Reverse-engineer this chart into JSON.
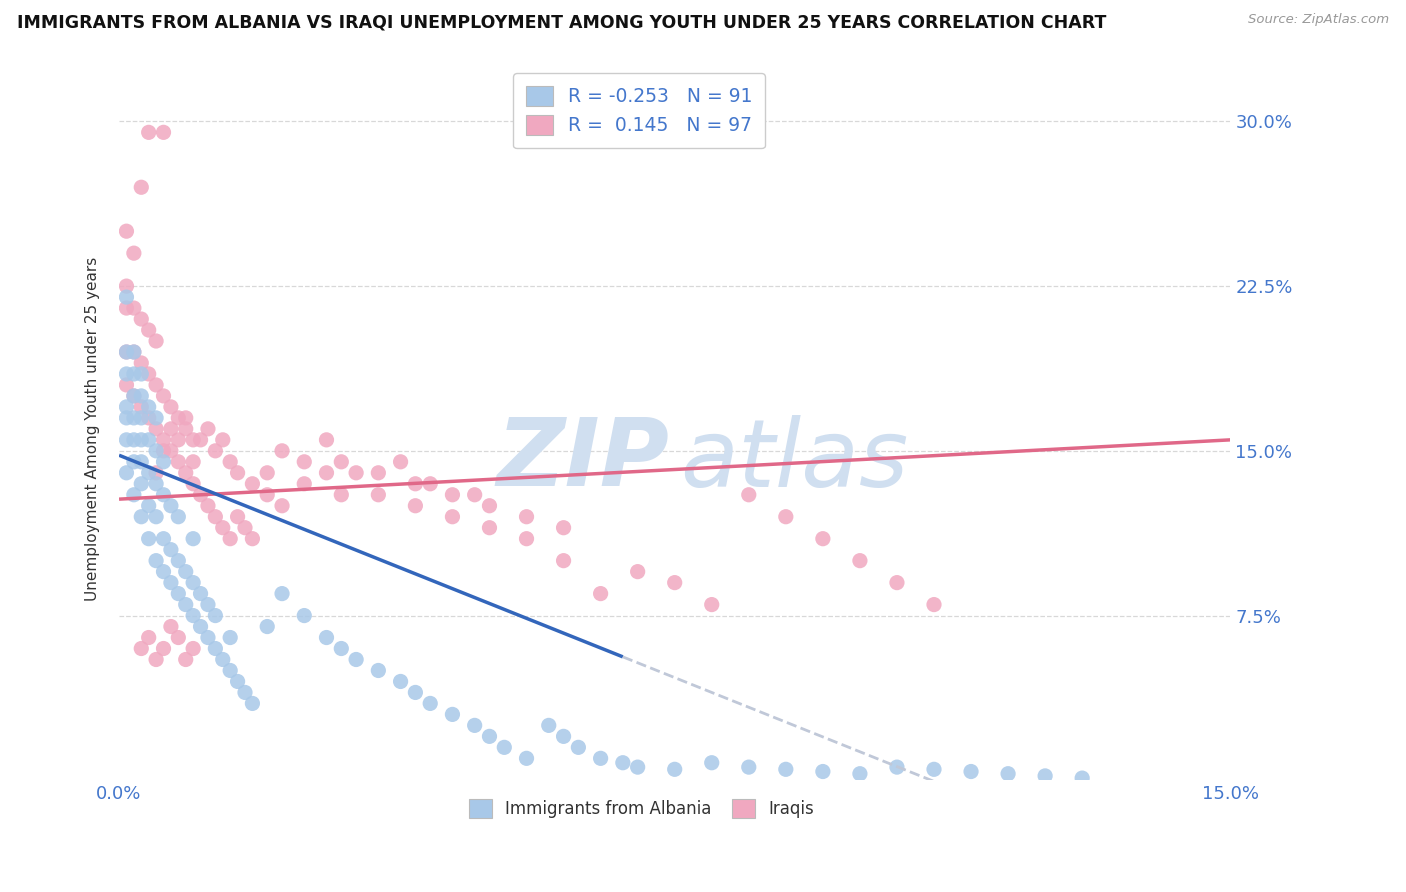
{
  "title": "IMMIGRANTS FROM ALBANIA VS IRAQI UNEMPLOYMENT AMONG YOUTH UNDER 25 YEARS CORRELATION CHART",
  "source": "Source: ZipAtlas.com",
  "ylabel": "Unemployment Among Youth under 25 years",
  "x_min": 0.0,
  "x_max": 0.15,
  "y_min": 0.0,
  "y_max": 0.32,
  "y_ticks": [
    0.075,
    0.15,
    0.225,
    0.3
  ],
  "y_tick_labels": [
    "7.5%",
    "15.0%",
    "22.5%",
    "30.0%"
  ],
  "x_ticks": [
    0.0,
    0.15
  ],
  "x_tick_labels": [
    "0.0%",
    "15.0%"
  ],
  "blue_color": "#a8c8e8",
  "pink_color": "#f0a8c0",
  "trend_blue": "#3366bb",
  "trend_pink": "#e06888",
  "trend_gray": "#c0c8d8",
  "tick_label_color": "#4477cc",
  "background_color": "#ffffff",
  "grid_color": "#d8d8d8",
  "watermark_color": "#d0dff0",
  "title_fontsize": 12.5,
  "label1": "Immigrants from Albania",
  "label2": "Iraqis",
  "albania_x": [
    0.001,
    0.001,
    0.001,
    0.001,
    0.001,
    0.001,
    0.001,
    0.002,
    0.002,
    0.002,
    0.002,
    0.002,
    0.002,
    0.002,
    0.003,
    0.003,
    0.003,
    0.003,
    0.003,
    0.003,
    0.003,
    0.004,
    0.004,
    0.004,
    0.004,
    0.004,
    0.005,
    0.005,
    0.005,
    0.005,
    0.005,
    0.006,
    0.006,
    0.006,
    0.006,
    0.007,
    0.007,
    0.007,
    0.008,
    0.008,
    0.008,
    0.009,
    0.009,
    0.01,
    0.01,
    0.01,
    0.011,
    0.011,
    0.012,
    0.012,
    0.013,
    0.013,
    0.014,
    0.015,
    0.015,
    0.016,
    0.017,
    0.018,
    0.02,
    0.022,
    0.025,
    0.028,
    0.03,
    0.032,
    0.035,
    0.038,
    0.04,
    0.042,
    0.045,
    0.048,
    0.05,
    0.052,
    0.055,
    0.058,
    0.06,
    0.062,
    0.065,
    0.068,
    0.07,
    0.075,
    0.08,
    0.085,
    0.09,
    0.095,
    0.1,
    0.105,
    0.11,
    0.115,
    0.12,
    0.125,
    0.13
  ],
  "albania_y": [
    0.14,
    0.155,
    0.165,
    0.17,
    0.185,
    0.195,
    0.22,
    0.13,
    0.145,
    0.155,
    0.165,
    0.175,
    0.185,
    0.195,
    0.12,
    0.135,
    0.145,
    0.155,
    0.165,
    0.175,
    0.185,
    0.11,
    0.125,
    0.14,
    0.155,
    0.17,
    0.1,
    0.12,
    0.135,
    0.15,
    0.165,
    0.095,
    0.11,
    0.13,
    0.145,
    0.09,
    0.105,
    0.125,
    0.085,
    0.1,
    0.12,
    0.08,
    0.095,
    0.075,
    0.09,
    0.11,
    0.07,
    0.085,
    0.065,
    0.08,
    0.06,
    0.075,
    0.055,
    0.05,
    0.065,
    0.045,
    0.04,
    0.035,
    0.07,
    0.085,
    0.075,
    0.065,
    0.06,
    0.055,
    0.05,
    0.045,
    0.04,
    0.035,
    0.03,
    0.025,
    0.02,
    0.015,
    0.01,
    0.025,
    0.02,
    0.015,
    0.01,
    0.008,
    0.006,
    0.005,
    0.008,
    0.006,
    0.005,
    0.004,
    0.003,
    0.006,
    0.005,
    0.004,
    0.003,
    0.002,
    0.001
  ],
  "iraq_x": [
    0.001,
    0.001,
    0.001,
    0.001,
    0.001,
    0.002,
    0.002,
    0.002,
    0.002,
    0.003,
    0.003,
    0.003,
    0.003,
    0.004,
    0.004,
    0.004,
    0.004,
    0.005,
    0.005,
    0.005,
    0.006,
    0.006,
    0.006,
    0.007,
    0.007,
    0.008,
    0.008,
    0.009,
    0.009,
    0.01,
    0.01,
    0.011,
    0.012,
    0.013,
    0.014,
    0.015,
    0.016,
    0.017,
    0.018,
    0.02,
    0.022,
    0.025,
    0.028,
    0.03,
    0.032,
    0.035,
    0.038,
    0.04,
    0.042,
    0.045,
    0.048,
    0.05,
    0.055,
    0.06,
    0.065,
    0.07,
    0.075,
    0.08,
    0.085,
    0.09,
    0.095,
    0.1,
    0.105,
    0.11,
    0.005,
    0.006,
    0.007,
    0.008,
    0.009,
    0.01,
    0.011,
    0.012,
    0.013,
    0.014,
    0.015,
    0.016,
    0.018,
    0.02,
    0.022,
    0.025,
    0.028,
    0.03,
    0.035,
    0.04,
    0.045,
    0.05,
    0.055,
    0.06,
    0.003,
    0.004,
    0.005,
    0.006,
    0.007,
    0.008,
    0.009,
    0.01
  ],
  "iraq_y": [
    0.18,
    0.195,
    0.215,
    0.225,
    0.25,
    0.175,
    0.195,
    0.215,
    0.24,
    0.17,
    0.19,
    0.21,
    0.27,
    0.165,
    0.185,
    0.205,
    0.295,
    0.16,
    0.18,
    0.2,
    0.155,
    0.175,
    0.295,
    0.15,
    0.17,
    0.145,
    0.165,
    0.14,
    0.16,
    0.135,
    0.155,
    0.13,
    0.125,
    0.12,
    0.115,
    0.11,
    0.12,
    0.115,
    0.11,
    0.13,
    0.125,
    0.135,
    0.14,
    0.13,
    0.14,
    0.13,
    0.145,
    0.125,
    0.135,
    0.12,
    0.13,
    0.115,
    0.11,
    0.1,
    0.085,
    0.095,
    0.09,
    0.08,
    0.13,
    0.12,
    0.11,
    0.1,
    0.09,
    0.08,
    0.14,
    0.15,
    0.16,
    0.155,
    0.165,
    0.145,
    0.155,
    0.16,
    0.15,
    0.155,
    0.145,
    0.14,
    0.135,
    0.14,
    0.15,
    0.145,
    0.155,
    0.145,
    0.14,
    0.135,
    0.13,
    0.125,
    0.12,
    0.115,
    0.06,
    0.065,
    0.055,
    0.06,
    0.07,
    0.065,
    0.055,
    0.06
  ]
}
